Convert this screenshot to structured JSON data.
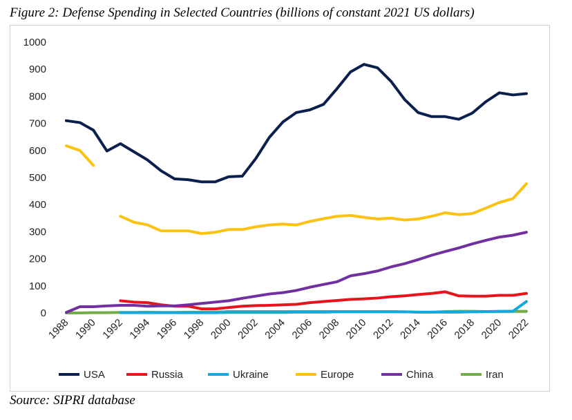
{
  "figure_title": "Figure 2: Defense Spending in Selected Countries (billions of constant 2021 US dollars)",
  "source_note": "Source: SIPRI database",
  "chart_data": {
    "type": "line",
    "title": "Figure 2: Defense Spending in Selected Countries (billions of constant 2021 US dollars)",
    "xlabel": "",
    "ylabel": "",
    "xlim": [
      1988,
      2022
    ],
    "ylim": [
      0,
      1000
    ],
    "y_ticks": [
      0,
      100,
      200,
      300,
      400,
      500,
      600,
      700,
      800,
      900,
      1000
    ],
    "y_tick_labels": [
      "0",
      "100",
      "200",
      "300",
      "400",
      "500",
      "600",
      "700",
      "800",
      "900",
      "1000"
    ],
    "x_ticks": [
      1988,
      1990,
      1992,
      1994,
      1996,
      1998,
      2000,
      2002,
      2004,
      2006,
      2008,
      2010,
      2012,
      2014,
      2016,
      2018,
      2020,
      2022
    ],
    "x_tick_labels": [
      "1988",
      "1990",
      "1992",
      "1994",
      "1996",
      "1998",
      "2000",
      "2002",
      "2004",
      "2006",
      "2008",
      "2010",
      "2012",
      "2014",
      "2016",
      "2018",
      "2020",
      "2022"
    ],
    "grid": false,
    "legend_position": "bottom",
    "x": [
      1988,
      1989,
      1990,
      1991,
      1992,
      1993,
      1994,
      1995,
      1996,
      1997,
      1998,
      1999,
      2000,
      2001,
      2002,
      2003,
      2004,
      2005,
      2006,
      2007,
      2008,
      2009,
      2010,
      2011,
      2012,
      2013,
      2014,
      2015,
      2016,
      2017,
      2018,
      2019,
      2020,
      2021,
      2022
    ],
    "series": [
      {
        "name": "USA",
        "color": "#0a1f4d",
        "values": [
          710,
          703,
          675,
          598,
          625,
          595,
          565,
          525,
          495,
          492,
          484,
          484,
          503,
          505,
          570,
          648,
          705,
          740,
          750,
          770,
          828,
          890,
          918,
          905,
          855,
          788,
          740,
          725,
          725,
          715,
          738,
          780,
          813,
          805,
          810
        ]
      },
      {
        "name": "Russia",
        "color": "#e8141c",
        "values": [
          null,
          null,
          null,
          null,
          45,
          40,
          38,
          30,
          25,
          25,
          15,
          15,
          20,
          25,
          27,
          28,
          30,
          32,
          38,
          42,
          46,
          50,
          52,
          55,
          60,
          63,
          68,
          72,
          78,
          63,
          62,
          62,
          65,
          65,
          72
        ]
      },
      {
        "name": "Ukraine",
        "color": "#14a8e0",
        "values": [
          null,
          null,
          null,
          null,
          1,
          1,
          1,
          1,
          1,
          1,
          1,
          1,
          2,
          2,
          2,
          2,
          2,
          3,
          3,
          3,
          4,
          4,
          4,
          4,
          4,
          4,
          3,
          3,
          3,
          3,
          4,
          5,
          6,
          6,
          42
        ]
      },
      {
        "name": "Europe",
        "color": "#fcc20f",
        "values": [
          617,
          600,
          545,
          null,
          357,
          335,
          325,
          303,
          303,
          303,
          293,
          298,
          308,
          308,
          318,
          325,
          328,
          325,
          338,
          348,
          357,
          360,
          353,
          347,
          350,
          343,
          347,
          357,
          370,
          363,
          367,
          387,
          408,
          422,
          477
        ]
      },
      {
        "name": "China",
        "color": "#7030a0",
        "values": [
          2,
          23,
          23,
          26,
          28,
          28,
          25,
          26,
          26,
          30,
          35,
          40,
          45,
          54,
          62,
          70,
          75,
          83,
          95,
          105,
          115,
          137,
          145,
          155,
          170,
          182,
          197,
          213,
          227,
          240,
          255,
          268,
          280,
          287,
          298
        ]
      },
      {
        "name": "Iran",
        "color": "#70ad47",
        "values": [
          0,
          0,
          1,
          1,
          2,
          2,
          3,
          2,
          2,
          3,
          3,
          3,
          5,
          5,
          5,
          5,
          5,
          5,
          5,
          5,
          5,
          5,
          5,
          5,
          5,
          4,
          3,
          3,
          5,
          6,
          6,
          5,
          5,
          6,
          6
        ]
      }
    ]
  }
}
